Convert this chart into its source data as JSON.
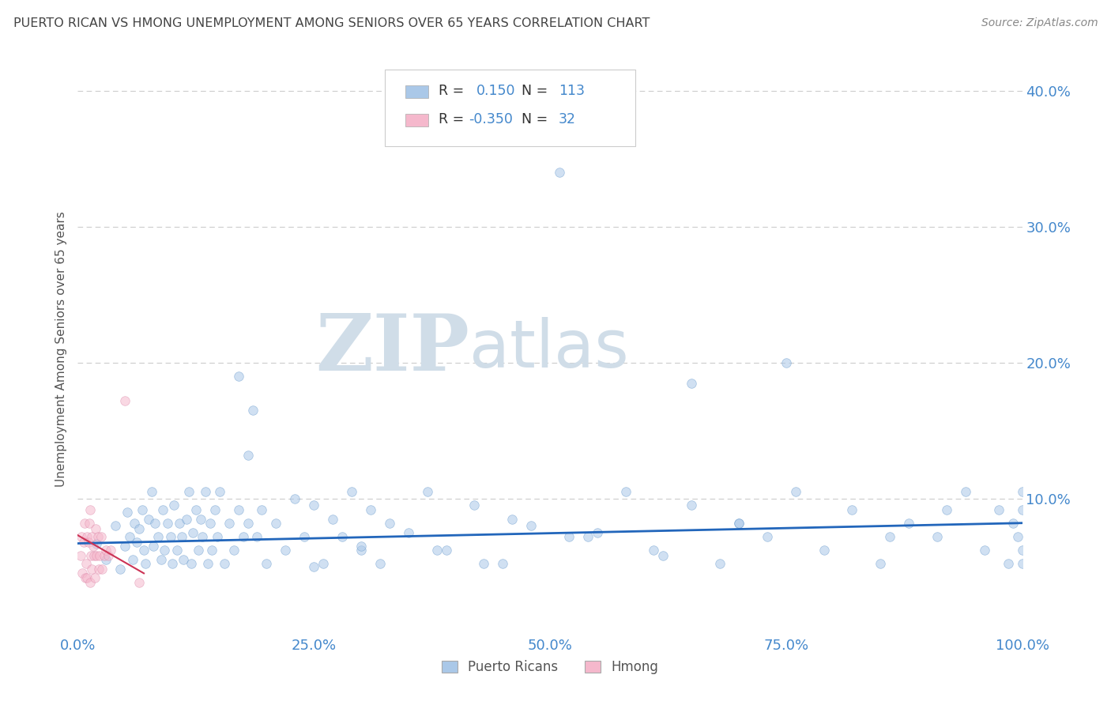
{
  "title": "PUERTO RICAN VS HMONG UNEMPLOYMENT AMONG SENIORS OVER 65 YEARS CORRELATION CHART",
  "source": "Source: ZipAtlas.com",
  "ylabel": "Unemployment Among Seniors over 65 years",
  "legend_labels": [
    "Puerto Ricans",
    "Hmong"
  ],
  "r_blue_label": "R = ",
  "r_blue_val": "0.150",
  "n_blue_label": "N = ",
  "n_blue_val": "113",
  "r_pink_label": "R = ",
  "r_pink_val": "-0.350",
  "n_pink_label": "N = ",
  "n_pink_val": "32",
  "blue_color": "#aac8e8",
  "pink_color": "#f5b8cc",
  "blue_edge": "#6699cc",
  "pink_edge": "#dd88aa",
  "trend_blue": "#2266bb",
  "trend_pink": "#cc3355",
  "title_color": "#444444",
  "source_color": "#888888",
  "axis_label_color": "#555555",
  "tick_color": "#4488cc",
  "legend_text_color": "#4488cc",
  "watermark_zip_color": "#d0dde8",
  "watermark_atlas_color": "#d0dde8",
  "background": "#ffffff",
  "grid_color": "#cccccc",
  "xlim": [
    0.0,
    1.0
  ],
  "ylim": [
    0.0,
    0.42
  ],
  "yticks": [
    0.0,
    0.1,
    0.2,
    0.3,
    0.4
  ],
  "ytick_labels": [
    "",
    "10.0%",
    "20.0%",
    "30.0%",
    "40.0%"
  ],
  "xticks": [
    0.0,
    0.25,
    0.5,
    0.75,
    1.0
  ],
  "xtick_labels": [
    "0.0%",
    "25.0%",
    "50.0%",
    "75.0%",
    "100.0%"
  ],
  "blue_x": [
    0.02,
    0.03,
    0.04,
    0.045,
    0.05,
    0.052,
    0.055,
    0.058,
    0.06,
    0.062,
    0.065,
    0.068,
    0.07,
    0.072,
    0.075,
    0.078,
    0.08,
    0.082,
    0.085,
    0.088,
    0.09,
    0.092,
    0.095,
    0.098,
    0.1,
    0.102,
    0.105,
    0.108,
    0.11,
    0.112,
    0.115,
    0.118,
    0.12,
    0.122,
    0.125,
    0.128,
    0.13,
    0.132,
    0.135,
    0.138,
    0.14,
    0.142,
    0.145,
    0.148,
    0.15,
    0.155,
    0.16,
    0.165,
    0.17,
    0.175,
    0.18,
    0.185,
    0.19,
    0.195,
    0.2,
    0.21,
    0.22,
    0.23,
    0.24,
    0.25,
    0.26,
    0.27,
    0.28,
    0.29,
    0.3,
    0.31,
    0.32,
    0.33,
    0.35,
    0.37,
    0.39,
    0.42,
    0.45,
    0.48,
    0.51,
    0.54,
    0.58,
    0.61,
    0.65,
    0.68,
    0.7,
    0.73,
    0.76,
    0.79,
    0.82,
    0.85,
    0.88,
    0.91,
    0.94,
    0.96,
    0.975,
    0.985,
    0.99,
    0.995,
    1.0,
    1.0,
    1.0,
    1.0,
    0.43,
    0.17,
    0.18,
    0.52,
    0.65,
    0.75,
    0.86,
    0.92,
    0.3,
    0.25,
    0.38,
    0.46,
    0.55,
    0.62,
    0.7
  ],
  "blue_y": [
    0.067,
    0.055,
    0.08,
    0.048,
    0.065,
    0.09,
    0.072,
    0.055,
    0.082,
    0.068,
    0.078,
    0.092,
    0.062,
    0.052,
    0.085,
    0.105,
    0.065,
    0.082,
    0.072,
    0.055,
    0.092,
    0.062,
    0.082,
    0.072,
    0.052,
    0.095,
    0.062,
    0.082,
    0.072,
    0.055,
    0.085,
    0.105,
    0.052,
    0.075,
    0.092,
    0.062,
    0.085,
    0.072,
    0.105,
    0.052,
    0.082,
    0.062,
    0.092,
    0.072,
    0.105,
    0.052,
    0.082,
    0.062,
    0.092,
    0.072,
    0.082,
    0.165,
    0.072,
    0.092,
    0.052,
    0.082,
    0.062,
    0.1,
    0.072,
    0.095,
    0.052,
    0.085,
    0.072,
    0.105,
    0.062,
    0.092,
    0.052,
    0.082,
    0.075,
    0.105,
    0.062,
    0.095,
    0.052,
    0.08,
    0.34,
    0.072,
    0.105,
    0.062,
    0.095,
    0.052,
    0.082,
    0.072,
    0.105,
    0.062,
    0.092,
    0.052,
    0.082,
    0.072,
    0.105,
    0.062,
    0.092,
    0.052,
    0.082,
    0.072,
    0.105,
    0.062,
    0.092,
    0.052,
    0.052,
    0.19,
    0.132,
    0.072,
    0.185,
    0.2,
    0.072,
    0.092,
    0.065,
    0.05,
    0.062,
    0.085,
    0.075,
    0.058,
    0.082
  ],
  "pink_x": [
    0.003,
    0.004,
    0.005,
    0.006,
    0.007,
    0.008,
    0.009,
    0.01,
    0.01,
    0.011,
    0.012,
    0.013,
    0.013,
    0.014,
    0.015,
    0.015,
    0.016,
    0.017,
    0.018,
    0.019,
    0.02,
    0.021,
    0.022,
    0.023,
    0.025,
    0.026,
    0.028,
    0.03,
    0.032,
    0.035,
    0.05,
    0.065
  ],
  "pink_y": [
    0.058,
    0.072,
    0.045,
    0.068,
    0.082,
    0.042,
    0.052,
    0.072,
    0.042,
    0.068,
    0.082,
    0.038,
    0.092,
    0.058,
    0.072,
    0.048,
    0.065,
    0.058,
    0.042,
    0.078,
    0.058,
    0.072,
    0.048,
    0.058,
    0.072,
    0.048,
    0.058,
    0.062,
    0.058,
    0.062,
    0.172,
    0.038
  ],
  "blue_trend_x": [
    0.0,
    1.0
  ],
  "blue_trend_y": [
    0.067,
    0.082
  ],
  "pink_trend_x": [
    0.0,
    0.07
  ],
  "pink_trend_y": [
    0.073,
    0.045
  ],
  "marker_size": 70,
  "marker_alpha": 0.55,
  "figsize": [
    14.06,
    8.92
  ],
  "dpi": 100
}
